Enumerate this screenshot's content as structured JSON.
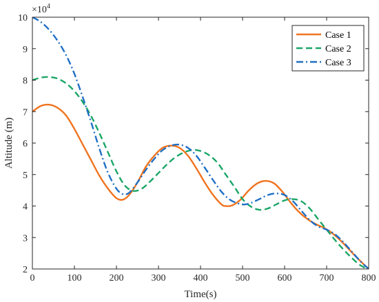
{
  "chart_data": {
    "type": "line",
    "title": "",
    "xlabel": "Time(s)",
    "ylabel": "Altitude (m)",
    "xlim": [
      0,
      800
    ],
    "ylim": [
      2,
      10
    ],
    "y_multiplier_base": "×10",
    "y_multiplier_exp": "4",
    "grid": false,
    "legend_position": "top-right",
    "xticks": [
      {
        "v": 0,
        "label": "0"
      },
      {
        "v": 100,
        "label": "100"
      },
      {
        "v": 200,
        "label": "200"
      },
      {
        "v": 300,
        "label": "300"
      },
      {
        "v": 400,
        "label": "400"
      },
      {
        "v": 500,
        "label": "500"
      },
      {
        "v": 600,
        "label": "600"
      },
      {
        "v": 700,
        "label": "700"
      },
      {
        "v": 800,
        "label": "800"
      }
    ],
    "yticks": [
      {
        "v": 2,
        "label": "2"
      },
      {
        "v": 3,
        "label": "3"
      },
      {
        "v": 4,
        "label": "4"
      },
      {
        "v": 5,
        "label": "5"
      },
      {
        "v": 6,
        "label": "6"
      },
      {
        "v": 7,
        "label": "7"
      },
      {
        "v": 8,
        "label": "8"
      },
      {
        "v": 9,
        "label": "9"
      },
      {
        "v": 10,
        "label": "10"
      }
    ],
    "series": [
      {
        "name": "Case 1",
        "color": "#f0731e",
        "dash": "solid",
        "points": [
          [
            0,
            7.0
          ],
          [
            20,
            7.18
          ],
          [
            40,
            7.22
          ],
          [
            60,
            7.12
          ],
          [
            80,
            6.88
          ],
          [
            100,
            6.45
          ],
          [
            120,
            5.95
          ],
          [
            140,
            5.45
          ],
          [
            160,
            4.95
          ],
          [
            180,
            4.55
          ],
          [
            200,
            4.25
          ],
          [
            215,
            4.2
          ],
          [
            230,
            4.35
          ],
          [
            250,
            4.75
          ],
          [
            270,
            5.25
          ],
          [
            290,
            5.6
          ],
          [
            310,
            5.85
          ],
          [
            330,
            5.92
          ],
          [
            350,
            5.85
          ],
          [
            370,
            5.6
          ],
          [
            390,
            5.2
          ],
          [
            410,
            4.75
          ],
          [
            430,
            4.35
          ],
          [
            450,
            4.05
          ],
          [
            460,
            4.0
          ],
          [
            475,
            4.02
          ],
          [
            495,
            4.2
          ],
          [
            515,
            4.5
          ],
          [
            535,
            4.72
          ],
          [
            555,
            4.8
          ],
          [
            575,
            4.72
          ],
          [
            595,
            4.45
          ],
          [
            615,
            4.1
          ],
          [
            635,
            3.8
          ],
          [
            655,
            3.58
          ],
          [
            675,
            3.42
          ],
          [
            695,
            3.3
          ],
          [
            715,
            3.12
          ],
          [
            735,
            2.88
          ],
          [
            755,
            2.6
          ],
          [
            775,
            2.32
          ],
          [
            800,
            2.0
          ]
        ]
      },
      {
        "name": "Case 2",
        "color": "#1aa566",
        "dash": "dashed",
        "points": [
          [
            0,
            8.0
          ],
          [
            20,
            8.08
          ],
          [
            40,
            8.1
          ],
          [
            60,
            8.05
          ],
          [
            80,
            7.9
          ],
          [
            100,
            7.65
          ],
          [
            120,
            7.3
          ],
          [
            140,
            6.85
          ],
          [
            160,
            6.3
          ],
          [
            180,
            5.7
          ],
          [
            200,
            5.1
          ],
          [
            220,
            4.65
          ],
          [
            240,
            4.48
          ],
          [
            260,
            4.55
          ],
          [
            280,
            4.78
          ],
          [
            300,
            5.05
          ],
          [
            320,
            5.32
          ],
          [
            340,
            5.55
          ],
          [
            360,
            5.7
          ],
          [
            380,
            5.78
          ],
          [
            400,
            5.75
          ],
          [
            420,
            5.62
          ],
          [
            440,
            5.38
          ],
          [
            460,
            5.0
          ],
          [
            480,
            4.62
          ],
          [
            500,
            4.22
          ],
          [
            520,
            3.98
          ],
          [
            540,
            3.88
          ],
          [
            560,
            3.92
          ],
          [
            580,
            4.05
          ],
          [
            600,
            4.18
          ],
          [
            620,
            4.22
          ],
          [
            640,
            4.15
          ],
          [
            660,
            3.92
          ],
          [
            680,
            3.58
          ],
          [
            700,
            3.25
          ],
          [
            720,
            2.92
          ],
          [
            740,
            2.62
          ],
          [
            760,
            2.35
          ],
          [
            780,
            2.12
          ],
          [
            800,
            1.98
          ]
        ]
      },
      {
        "name": "Case 3",
        "color": "#1f6fc4",
        "dash": "dashdot",
        "points": [
          [
            0,
            10.0
          ],
          [
            20,
            9.85
          ],
          [
            40,
            9.6
          ],
          [
            60,
            9.25
          ],
          [
            80,
            8.8
          ],
          [
            100,
            8.2
          ],
          [
            120,
            7.45
          ],
          [
            140,
            6.65
          ],
          [
            160,
            5.8
          ],
          [
            180,
            5.05
          ],
          [
            200,
            4.55
          ],
          [
            215,
            4.38
          ],
          [
            230,
            4.42
          ],
          [
            250,
            4.75
          ],
          [
            270,
            5.15
          ],
          [
            290,
            5.5
          ],
          [
            310,
            5.78
          ],
          [
            330,
            5.92
          ],
          [
            350,
            5.95
          ],
          [
            370,
            5.85
          ],
          [
            390,
            5.6
          ],
          [
            410,
            5.22
          ],
          [
            430,
            4.82
          ],
          [
            450,
            4.45
          ],
          [
            470,
            4.2
          ],
          [
            490,
            4.08
          ],
          [
            505,
            4.05
          ],
          [
            520,
            4.1
          ],
          [
            540,
            4.22
          ],
          [
            560,
            4.35
          ],
          [
            580,
            4.4
          ],
          [
            600,
            4.35
          ],
          [
            620,
            4.15
          ],
          [
            640,
            3.85
          ],
          [
            660,
            3.55
          ],
          [
            680,
            3.35
          ],
          [
            700,
            3.25
          ],
          [
            720,
            3.1
          ],
          [
            740,
            2.85
          ],
          [
            760,
            2.55
          ],
          [
            780,
            2.25
          ],
          [
            800,
            2.0
          ]
        ]
      }
    ]
  }
}
